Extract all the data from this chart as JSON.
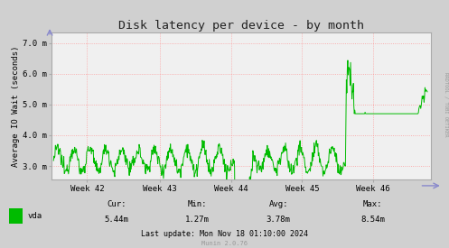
{
  "title": "Disk latency per device - by month",
  "ylabel": "Average IO Wait (seconds)",
  "bg_color": "#d0d0d0",
  "plot_bg_color": "#f0f0f0",
  "grid_color": "#ff8888",
  "line_color": "#00bb00",
  "line_width": 0.7,
  "ytick_labels": [
    "3.0 m",
    "4.0 m",
    "5.0 m",
    "6.0 m",
    "7.0 m"
  ],
  "ytick_vals": [
    0.003,
    0.004,
    0.005,
    0.006,
    0.007
  ],
  "ylim": [
    0.00255,
    0.00735
  ],
  "xtick_labels": [
    "Week 42",
    "Week 43",
    "Week 44",
    "Week 45",
    "Week 46"
  ],
  "legend_label": "vda",
  "legend_color": "#00bb00",
  "cur": "5.44m",
  "min_val": "1.27m",
  "avg": "3.78m",
  "max_val": "8.54m",
  "last_update": "Last update: Mon Nov 18 01:10:00 2024",
  "munin_version": "Munin 2.0.76",
  "rrdtool_label": "RRDTOOL / TOBI OETIKER",
  "title_fontsize": 9.5,
  "axis_label_fontsize": 6.5,
  "tick_fontsize": 6.5,
  "stats_fontsize": 6.5
}
